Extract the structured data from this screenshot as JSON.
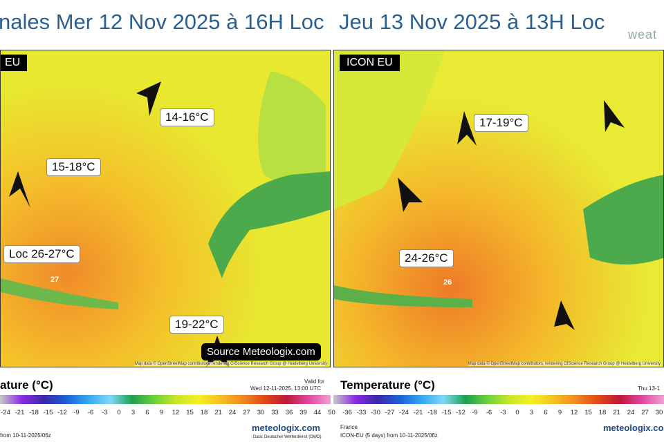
{
  "header": {
    "left_title": "nales Mer 12 Nov 2025 à 16H Loc",
    "right_title": "Jeu 13 Nov 2025 à 13H Loc",
    "logo": "weat"
  },
  "maps": [
    {
      "model": "EU",
      "annotations": [
        "14-16°C",
        "15-18°C",
        "Loc 26-27°C",
        "19-22°C"
      ],
      "max_label": "27",
      "source": "Source Meteologix.com",
      "attribution": "Map data © OpenStreetMap contributors, rendering GIScience Research Group @ Heidelberg University"
    },
    {
      "model": "ICON EU",
      "annotations": [
        "17-19°C",
        "24-26°C"
      ],
      "max_label": "26",
      "attribution": "Map data © OpenStreetMap contributors, rendering GIScience Research Group @ Heidelberg University"
    }
  ],
  "legends": [
    {
      "title": "ature (°C)",
      "valid_label": "Valid for",
      "valid": "Wed 12-11-2025, 13:00 UTC",
      "scale": [
        "-24",
        "-21",
        "-18",
        "-15",
        "-12",
        "-9",
        "-6",
        "-3",
        "0",
        "3",
        "6",
        "9",
        "12",
        "15",
        "18",
        "21",
        "24",
        "27",
        "30",
        "33",
        "36",
        "39",
        "44",
        "50"
      ],
      "run": "from 10-11-2025/06z",
      "brand": "meteologix.com",
      "data_source": "Data: Deutscher Wetterdienst (DWD)"
    },
    {
      "title": "Temperature (°C)",
      "valid": "Thu 13-1",
      "scale": [
        "-36",
        "-33",
        "-30",
        "-27",
        "-24",
        "-21",
        "-18",
        "-15",
        "-12",
        "-9",
        "-6",
        "-3",
        "0",
        "3",
        "6",
        "9",
        "12",
        "15",
        "18",
        "21",
        "24",
        "27",
        "30"
      ],
      "region": "France",
      "run": "ICON-EU (5 days) from 10-11-2025/06z",
      "brand": "meteologix.com"
    }
  ]
}
